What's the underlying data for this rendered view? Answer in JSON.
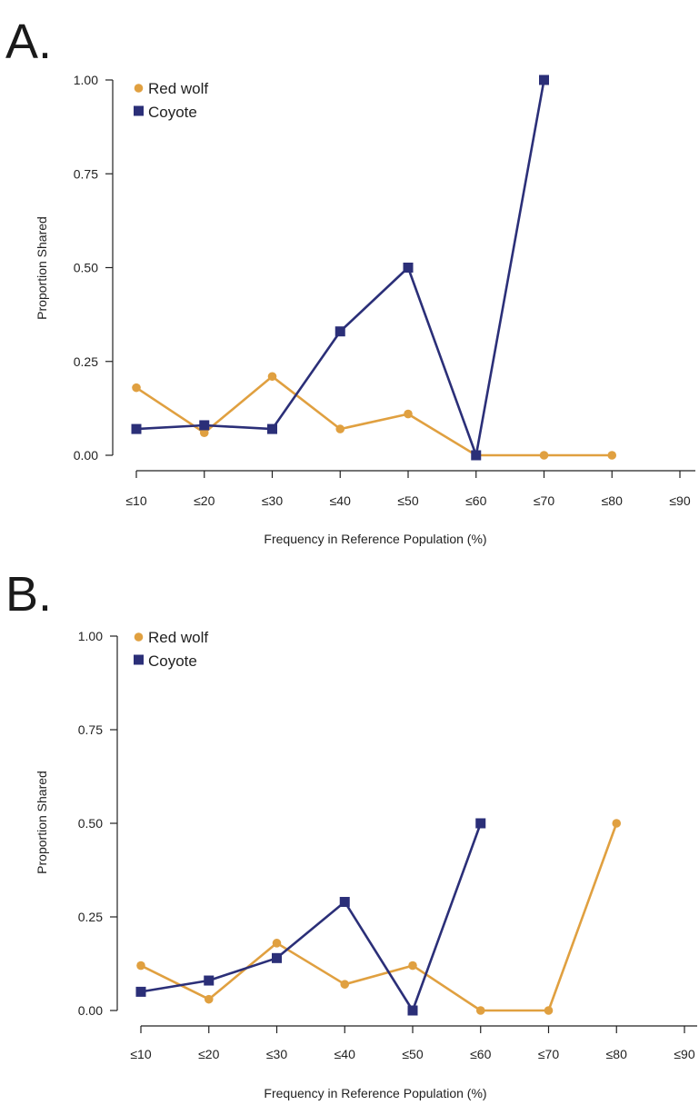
{
  "colors": {
    "red_wolf": "#E0A040",
    "coyote": "#2B2F78",
    "axis": "#222222"
  },
  "chart_data": [
    {
      "panel_label": "A.",
      "type": "line",
      "xlabel": "Frequency in Reference Population (%)",
      "ylabel": "Proportion Shared",
      "categories": [
        "≤10",
        "≤20",
        "≤30",
        "≤40",
        "≤50",
        "≤60",
        "≤70",
        "≤80",
        "≤90"
      ],
      "ylim": [
        0,
        1
      ],
      "yticks": [
        "0.00",
        "0.25",
        "0.50",
        "0.75",
        "1.00"
      ],
      "legend_position": "top-left",
      "grid": false,
      "series": [
        {
          "name": "Red wolf",
          "marker": "circle",
          "values": [
            0.18,
            0.06,
            0.21,
            0.07,
            0.11,
            0.0,
            0.0,
            0.0,
            null
          ]
        },
        {
          "name": "Coyote",
          "marker": "square",
          "values": [
            0.07,
            0.08,
            0.07,
            0.33,
            0.5,
            0.0,
            1.0,
            null,
            null
          ]
        }
      ]
    },
    {
      "panel_label": "B.",
      "type": "line",
      "xlabel": "Frequency in Reference Population (%)",
      "ylabel": "Proportion Shared",
      "categories": [
        "≤10",
        "≤20",
        "≤30",
        "≤40",
        "≤50",
        "≤60",
        "≤70",
        "≤80",
        "≤90"
      ],
      "ylim": [
        0,
        1
      ],
      "yticks": [
        "0.00",
        "0.25",
        "0.50",
        "0.75",
        "1.00"
      ],
      "legend_position": "top-left",
      "grid": false,
      "series": [
        {
          "name": "Red wolf",
          "marker": "circle",
          "values": [
            0.12,
            0.03,
            0.18,
            0.07,
            0.12,
            0.0,
            0.0,
            0.5,
            null
          ]
        },
        {
          "name": "Coyote",
          "marker": "square",
          "values": [
            0.05,
            0.08,
            0.14,
            0.29,
            0.0,
            0.5,
            null,
            null,
            null
          ]
        }
      ]
    }
  ]
}
